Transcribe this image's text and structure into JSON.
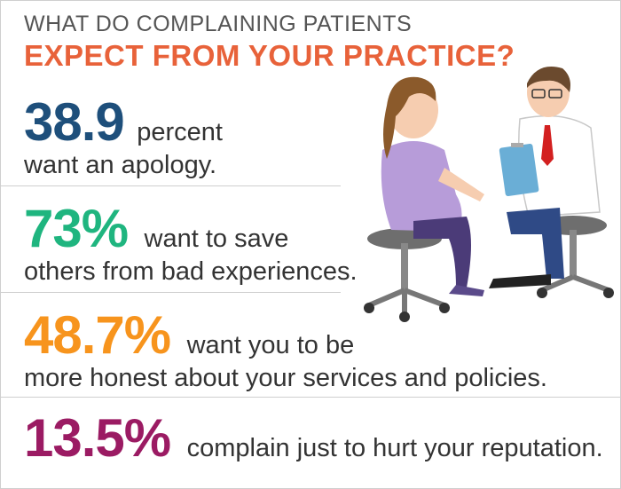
{
  "header": {
    "line1": "WHAT DO COMPLAINING PATIENTS",
    "line2": "EXPECT FROM YOUR PRACTICE?"
  },
  "stats": [
    {
      "value": "38.9",
      "text_inline": "percent",
      "text_line2": "want an apology.",
      "color": "#1e4f7b"
    },
    {
      "value": "73%",
      "text_inline": "want to save",
      "text_line2": "others from bad experiences.",
      "color": "#1fb57f"
    },
    {
      "value": "48.7%",
      "text_inline": "want you to be",
      "text_line2": "more honest about your services and policies.",
      "color": "#f7941d"
    },
    {
      "value": "13.5%",
      "text_inline": "complain just to hurt your reputation.",
      "text_line2": "",
      "color": "#9b1b63"
    }
  ],
  "colors": {
    "title_gray": "#555555",
    "title_orange": "#e8623a"
  },
  "illustration": {
    "icon": "doctor-patient-consultation-illustration"
  }
}
